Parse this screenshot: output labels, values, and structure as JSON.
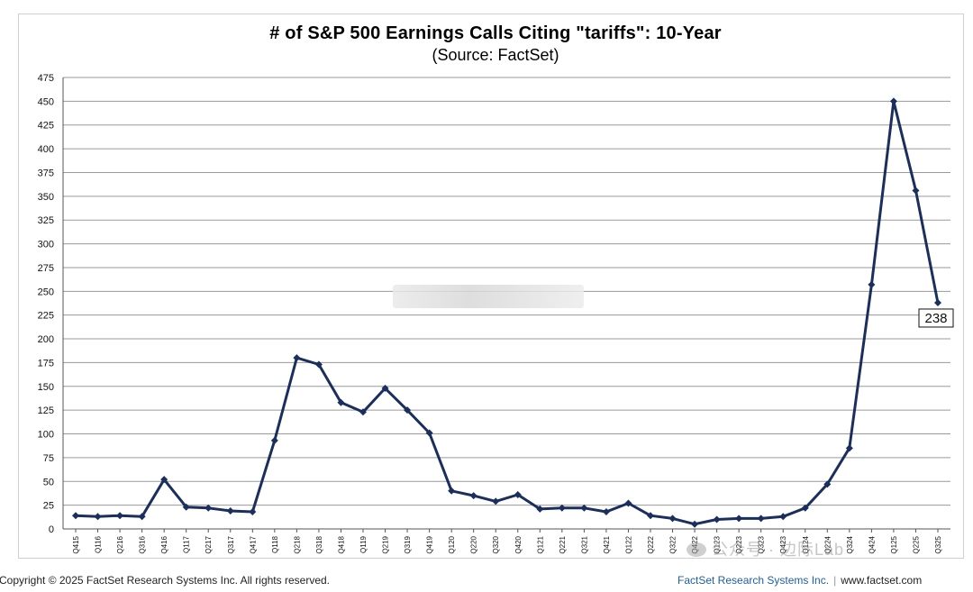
{
  "chart_data": {
    "type": "line",
    "title": "# of S&P 500 Earnings Calls Citing \"tariffs\": 10-Year",
    "subtitle": "(Source: FactSet)",
    "xlabel": "",
    "ylabel": "",
    "ylim": [
      0,
      475
    ],
    "yticks": [
      0,
      25,
      50,
      75,
      100,
      125,
      150,
      175,
      200,
      225,
      250,
      275,
      300,
      325,
      350,
      375,
      400,
      425,
      450,
      475
    ],
    "grid": true,
    "categories": [
      "Q415",
      "Q116",
      "Q216",
      "Q316",
      "Q416",
      "Q117",
      "Q217",
      "Q317",
      "Q417",
      "Q118",
      "Q218",
      "Q318",
      "Q418",
      "Q119",
      "Q219",
      "Q319",
      "Q419",
      "Q120",
      "Q220",
      "Q320",
      "Q420",
      "Q121",
      "Q221",
      "Q321",
      "Q421",
      "Q122",
      "Q222",
      "Q322",
      "Q422",
      "Q123",
      "Q223",
      "Q323",
      "Q423",
      "Q124",
      "Q224",
      "Q324",
      "Q424",
      "Q125",
      "Q225",
      "Q325"
    ],
    "series": [
      {
        "name": "Earnings calls citing \"tariffs\"",
        "color": "#1a2f5e",
        "values": [
          14,
          13,
          14,
          13,
          52,
          23,
          22,
          19,
          18,
          93,
          180,
          173,
          133,
          123,
          148,
          125,
          101,
          40,
          35,
          29,
          36,
          21,
          22,
          22,
          18,
          27,
          14,
          11,
          5,
          10,
          11,
          11,
          13,
          22,
          47,
          85,
          257,
          450,
          356,
          238
        ]
      }
    ],
    "annotations": [
      {
        "label": "238",
        "series": 0,
        "index": 39
      }
    ]
  },
  "footer": {
    "copyright": "Copyright © 2025 FactSet Research Systems Inc. All rights reserved.",
    "brand": "FactSet Research Systems Inc.",
    "separator": "|",
    "website": "www.factset.com"
  },
  "watermark": {
    "text": "公众号 · 边际Lab"
  }
}
